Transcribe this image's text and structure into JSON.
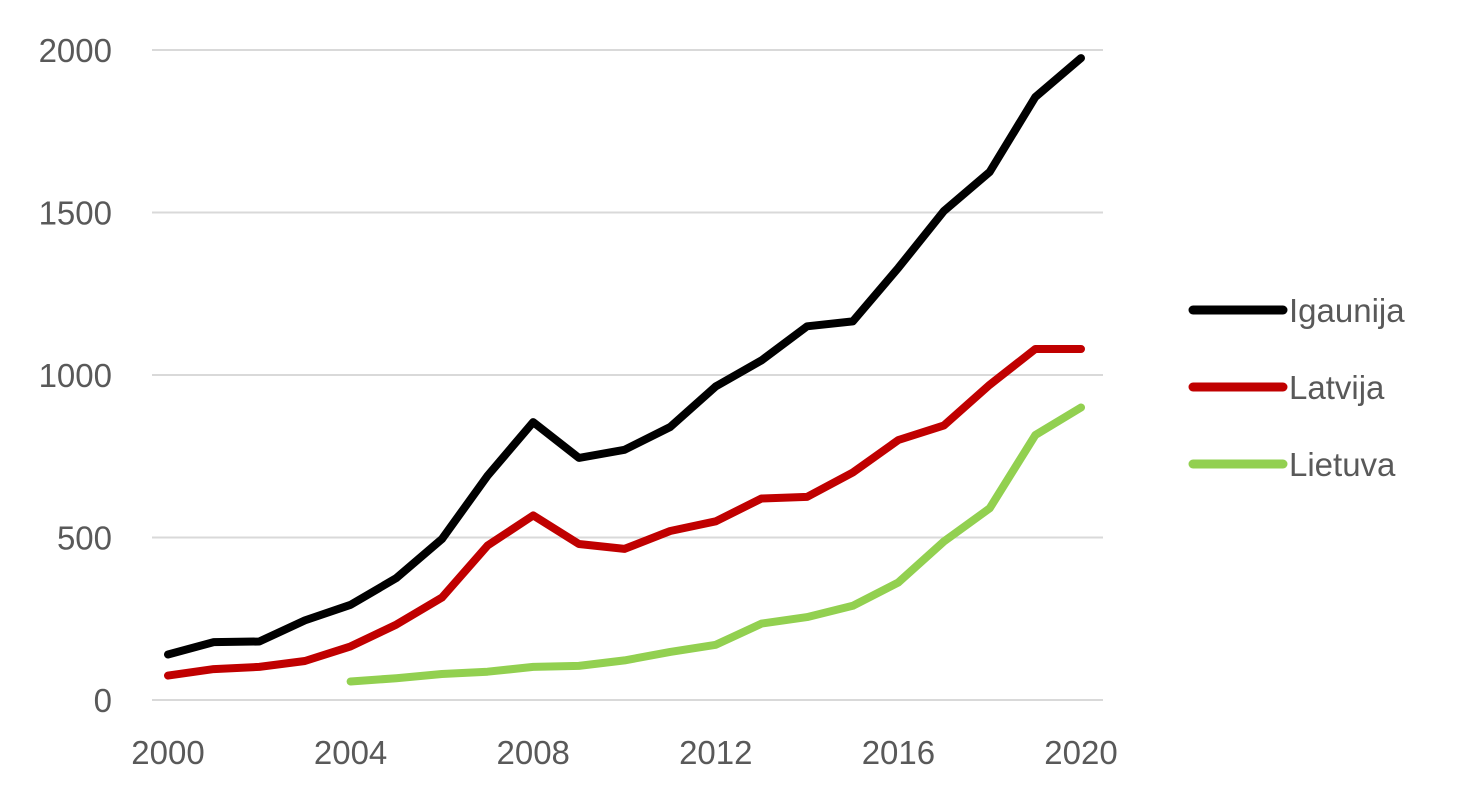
{
  "chart_data": {
    "type": "line",
    "title": "",
    "xlabel": "",
    "ylabel": "",
    "x": [
      2000,
      2001,
      2002,
      2003,
      2004,
      2005,
      2006,
      2007,
      2008,
      2009,
      2010,
      2011,
      2012,
      2013,
      2014,
      2015,
      2016,
      2017,
      2018,
      2019,
      2020
    ],
    "xlim": [
      2000,
      2020
    ],
    "ylim": [
      0,
      2000
    ],
    "x_ticks": [
      "2000",
      "2004",
      "2008",
      "2012",
      "2016",
      "2020"
    ],
    "y_ticks": [
      "0",
      "500",
      "1000",
      "1500",
      "2000"
    ],
    "grid": true,
    "legend_position": "right",
    "series": [
      {
        "name": "Igaunija",
        "color": "#000000",
        "values": [
          140,
          178,
          180,
          245,
          293,
          375,
          495,
          690,
          855,
          745,
          770,
          840,
          965,
          1045,
          1150,
          1165,
          1330,
          1505,
          1625,
          1855,
          1975
        ]
      },
      {
        "name": "Latvija",
        "color": "#c00000",
        "values": [
          75,
          95,
          102,
          120,
          165,
          232,
          315,
          475,
          568,
          480,
          465,
          520,
          550,
          620,
          625,
          700,
          800,
          845,
          970,
          1080,
          1080
        ]
      },
      {
        "name": "Lietuva",
        "color": "#92d050",
        "values": [
          null,
          null,
          null,
          null,
          57,
          67,
          80,
          87,
          102,
          105,
          122,
          148,
          170,
          235,
          255,
          290,
          362,
          488,
          590,
          815,
          900
        ]
      }
    ]
  }
}
